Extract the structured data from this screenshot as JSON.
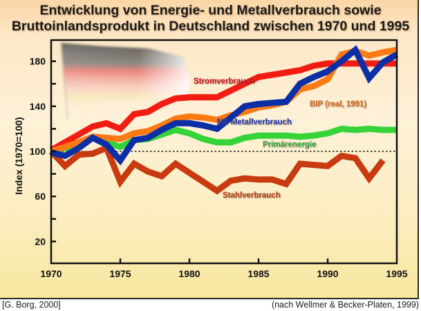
{
  "title": {
    "line1": "Entwicklung von Energie- und Metallverbrauch sowie",
    "line2": "Bruttoinlandsprodukt in Deutschland zwischen 1970 und 1995"
  },
  "footer": {
    "left": "[G. Borg, 2000]",
    "right": "(nach  Wellmer & Becker-Platen, 1999)"
  },
  "chart_data": {
    "type": "line",
    "title": "Entwicklung von Energie- und Metallverbrauch sowie Bruttoinlandsprodukt in Deutschland zwischen 1970 und 1995",
    "xlabel": "",
    "ylabel": "Index (1970=100)",
    "xlim": [
      1970,
      1995
    ],
    "ylim": [
      0,
      200
    ],
    "x_ticks": [
      1970,
      1975,
      1980,
      1985,
      1990,
      1995
    ],
    "y_ticks_labeled": [
      20,
      60,
      100,
      140,
      180
    ],
    "y_ticks_minor": [
      40,
      80,
      120,
      160
    ],
    "reference_line": {
      "y": 100,
      "style": "dotted"
    },
    "grid": false,
    "legend": "inline labels",
    "background_image": "German flag",
    "x": [
      1970,
      1971,
      1972,
      1973,
      1974,
      1975,
      1976,
      1977,
      1978,
      1979,
      1980,
      1981,
      1982,
      1983,
      1984,
      1985,
      1986,
      1987,
      1988,
      1989,
      1990,
      1991,
      1992,
      1993,
      1994,
      1995
    ],
    "series": [
      {
        "name": "Stromverbrauch",
        "color": "#f21d12",
        "label_color": "#c8101a",
        "label_pos": [
          1980.3,
          160
        ],
        "values": [
          101,
          108,
          115,
          122,
          125,
          120,
          133,
          135,
          142,
          147,
          148,
          148,
          148,
          154,
          160,
          166,
          168,
          170,
          172,
          176,
          178,
          178,
          178,
          178,
          178,
          178
        ]
      },
      {
        "name": "BIP (real, 1991)",
        "color": "#fb7a14",
        "label_color": "#d06a22",
        "label_pos": [
          1988.7,
          140
        ],
        "values": [
          100,
          104,
          108,
          113,
          112,
          111,
          116,
          118,
          123,
          129,
          131,
          130,
          128,
          132,
          135,
          139,
          141,
          144,
          155,
          158,
          164,
          186,
          189,
          185,
          188,
          190
        ]
      },
      {
        "name": "NE-Metallverbrauch",
        "color": "#0c2fa6",
        "label_color": "#1530a8",
        "label_pos": [
          1982.0,
          124
        ],
        "values": [
          99,
          96,
          103,
          112,
          106,
          92,
          110,
          112,
          119,
          125,
          125,
          123,
          120,
          130,
          140,
          142,
          143,
          144,
          160,
          166,
          171,
          180,
          190,
          165,
          179,
          186
        ]
      },
      {
        "name": "Primärenergie",
        "color": "#35d238",
        "label_color": "#2ea03a",
        "label_pos": [
          1985.3,
          104
        ],
        "values": [
          100,
          103,
          105,
          112,
          108,
          104,
          110,
          111,
          115,
          119,
          116,
          111,
          108,
          108,
          112,
          114,
          114,
          114,
          113,
          114,
          116,
          120,
          119,
          120,
          119,
          119
        ]
      },
      {
        "name": "Stahlverbrauch",
        "color": "#c83a10",
        "label_color": "#b23a18",
        "label_pos": [
          1982.4,
          59
        ],
        "values": [
          100,
          87,
          97,
          98,
          103,
          73,
          89,
          82,
          78,
          89,
          81,
          73,
          65,
          74,
          76,
          75,
          75,
          71,
          89,
          88,
          87,
          96,
          94,
          76,
          92,
          null
        ]
      }
    ]
  }
}
